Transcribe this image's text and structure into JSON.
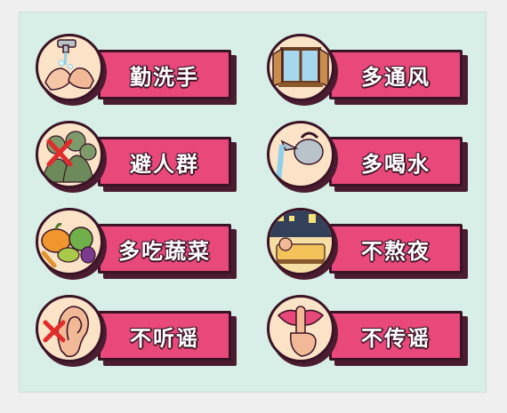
{
  "tips": [
    {
      "label": "勤洗手",
      "icon": "hand-washing-icon"
    },
    {
      "label": "多通风",
      "icon": "open-window-icon"
    },
    {
      "label": "避人群",
      "icon": "crowd-crossed-icon"
    },
    {
      "label": "多喝水",
      "icon": "kettle-pouring-icon"
    },
    {
      "label": "多吃蔬菜",
      "icon": "vegetables-icon"
    },
    {
      "label": "不熬夜",
      "icon": "night-sleep-icon"
    },
    {
      "label": "不听谣",
      "icon": "ear-crossed-icon"
    },
    {
      "label": "不传谣",
      "icon": "lips-shush-icon"
    }
  ],
  "colors": {
    "background": "#d7efe6",
    "bar": "#e8487a",
    "outline": "#3a1426",
    "circle": "#fbe3c8",
    "cross": "#e22b2b"
  }
}
